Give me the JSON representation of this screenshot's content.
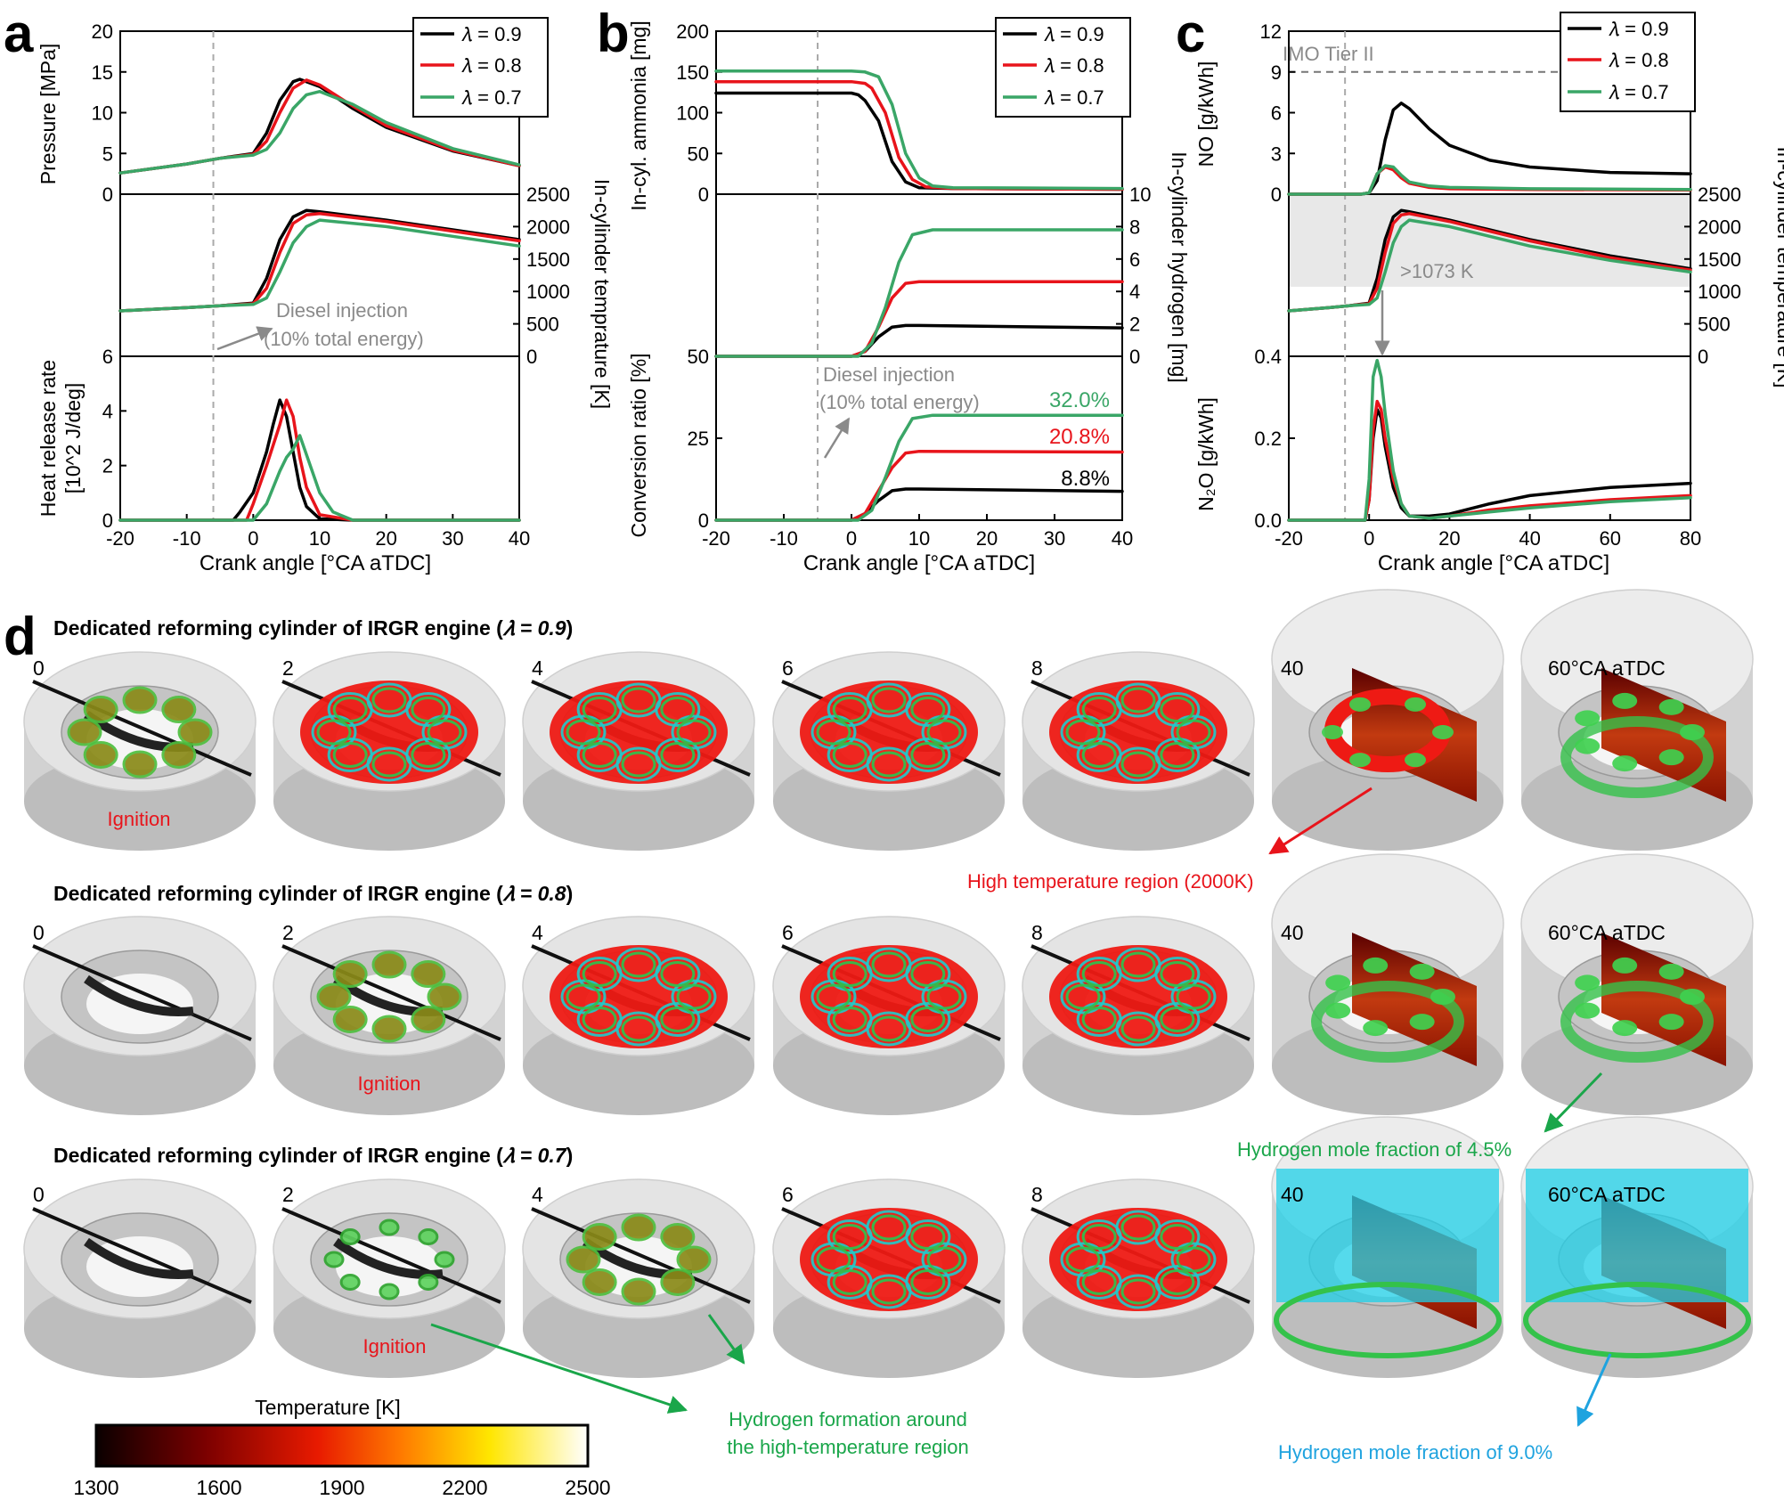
{
  "legend": {
    "entries": [
      "𝜆 = 0.9",
      "𝜆 = 0.8",
      "𝜆 = 0.7"
    ]
  },
  "colors": {
    "l09": "#000000",
    "l08": "#e8141b",
    "l07": "#3aa667",
    "vline": "#aaaaaa",
    "gray_text": "#8a8a8a",
    "cyan": "#1fa3df",
    "green_text": "#1aa64a",
    "red_text": "#e8141b"
  },
  "panel_a": {
    "letter": "a",
    "xlabel": "Crank angle [°CA aTDC]",
    "xticks": [
      "-20",
      "-10",
      "0",
      "10",
      "20",
      "30",
      "40"
    ],
    "top": {
      "ylabel": "Pressure [MPa]",
      "yticks": [
        "0",
        "5",
        "10",
        "15",
        "20"
      ]
    },
    "mid": {
      "ylabel_right": "In-cylinder temprature [K]",
      "yticks_right": [
        "0",
        "500",
        "1000",
        "1500",
        "2000",
        "2500"
      ]
    },
    "bot": {
      "ylabel_lines": [
        "Heat release rate",
        "[10^2 J/deg]"
      ],
      "yticks": [
        "0",
        "2",
        "4",
        "6"
      ]
    },
    "annotation": [
      "Diesel injection",
      "(10% total energy)"
    ]
  },
  "panel_b": {
    "letter": "b",
    "xlabel": "Crank angle [°CA aTDC]",
    "xticks": [
      "-20",
      "-10",
      "0",
      "10",
      "20",
      "30",
      "40"
    ],
    "top": {
      "ylabel": "In-cyl. ammonia [mg]",
      "yticks": [
        "0",
        "50",
        "100",
        "150",
        "200"
      ]
    },
    "mid": {
      "ylabel_right": "In-cylinder hydrogen [mg]",
      "yticks_right": [
        "0",
        "2",
        "4",
        "6",
        "8",
        "10"
      ]
    },
    "bot": {
      "ylabel": "Conversion ratio [%]",
      "yticks": [
        "0",
        "25",
        "50"
      ]
    },
    "annotation": [
      "Diesel injection",
      "(10% total energy)"
    ],
    "conversion_labels": [
      "32.0%",
      "20.8%",
      "8.8%"
    ]
  },
  "panel_c": {
    "letter": "c",
    "xlabel": "Crank angle [°CA aTDC]",
    "xticks": [
      "-20",
      "0",
      "20",
      "40",
      "60",
      "80"
    ],
    "top": {
      "ylabel": "NO [g/kWh]",
      "yticks": [
        "0",
        "3",
        "6",
        "9",
        "12"
      ],
      "imo_label": "IMO Tier II"
    },
    "mid": {
      "ylabel_right": "In-cylinder temperature [K]",
      "yticks_right": [
        "0",
        "500",
        "1000",
        "1500",
        "2000",
        "2500"
      ],
      "band_label": ">1073 K"
    },
    "bot": {
      "ylabel": "N₂O [g/kWh]",
      "yticks": [
        "0.0",
        "0.2",
        "0.4"
      ]
    }
  },
  "chart_data": [
    {
      "type": "line",
      "panel": "a-top",
      "ylabel": "Pressure [MPa]",
      "xlim": [
        -20,
        40
      ],
      "ylim": [
        0,
        20
      ],
      "series": [
        {
          "name": "𝜆 = 0.9",
          "x": [
            -20,
            -10,
            -5,
            0,
            2,
            4,
            6,
            7,
            10,
            15,
            20,
            30,
            40
          ],
          "y": [
            2.6,
            3.7,
            4.4,
            5.0,
            7.5,
            11.5,
            13.8,
            14.1,
            13.2,
            10.5,
            8.2,
            5.3,
            3.5
          ]
        },
        {
          "name": "𝜆 = 0.8",
          "x": [
            -20,
            -10,
            -5,
            0,
            2,
            4,
            6,
            8,
            10,
            15,
            20,
            30,
            40
          ],
          "y": [
            2.6,
            3.7,
            4.4,
            4.9,
            6.5,
            10.0,
            13.0,
            14.0,
            13.4,
            10.8,
            8.4,
            5.4,
            3.5
          ]
        },
        {
          "name": "𝜆 = 0.7",
          "x": [
            -20,
            -10,
            -5,
            0,
            2,
            4,
            6,
            8,
            10,
            15,
            20,
            30,
            40
          ],
          "y": [
            2.6,
            3.7,
            4.4,
            4.8,
            5.5,
            7.5,
            10.5,
            12.2,
            12.6,
            11.0,
            8.8,
            5.6,
            3.6
          ]
        }
      ]
    },
    {
      "type": "line",
      "panel": "a-mid",
      "ylabel": "In-cylinder temprature [K]",
      "xlim": [
        -20,
        40
      ],
      "ylim": [
        0,
        2500
      ],
      "series": [
        {
          "name": "𝜆 = 0.9",
          "x": [
            -20,
            -10,
            -5,
            0,
            2,
            4,
            6,
            8,
            10,
            20,
            30,
            40
          ],
          "y": [
            700,
            750,
            780,
            820,
            1200,
            1800,
            2150,
            2250,
            2230,
            2100,
            1950,
            1800
          ]
        },
        {
          "name": "𝜆 = 0.8",
          "x": [
            -20,
            -10,
            -5,
            0,
            2,
            4,
            6,
            8,
            10,
            20,
            30,
            40
          ],
          "y": [
            700,
            750,
            780,
            810,
            1050,
            1600,
            2050,
            2180,
            2200,
            2080,
            1930,
            1780
          ]
        },
        {
          "name": "𝜆 = 0.7",
          "x": [
            -20,
            -10,
            -5,
            0,
            2,
            4,
            6,
            8,
            10,
            20,
            30,
            40
          ],
          "y": [
            700,
            750,
            780,
            800,
            900,
            1300,
            1750,
            2000,
            2100,
            2000,
            1850,
            1700
          ]
        }
      ]
    },
    {
      "type": "line",
      "panel": "a-bot",
      "ylabel": "Heat release rate [10^2 J/deg]",
      "xlim": [
        -20,
        40
      ],
      "ylim": [
        0,
        6
      ],
      "series": [
        {
          "name": "𝜆 = 0.9",
          "x": [
            -20,
            -3,
            -2,
            0,
            2,
            3,
            4,
            5,
            6,
            7,
            8,
            10,
            15,
            40
          ],
          "y": [
            0,
            0,
            0.3,
            1.0,
            2.5,
            3.5,
            4.4,
            3.8,
            2.5,
            1.2,
            0.5,
            0.05,
            0,
            0
          ]
        },
        {
          "name": "𝜆 = 0.8",
          "x": [
            -20,
            -1,
            0,
            2,
            4,
            5,
            6,
            7,
            8,
            10,
            15,
            40
          ],
          "y": [
            0,
            0,
            0.6,
            2.0,
            3.5,
            4.4,
            3.8,
            2.3,
            1.2,
            0.2,
            0,
            0
          ]
        },
        {
          "name": "𝜆 = 0.7",
          "x": [
            -20,
            0,
            2,
            4,
            5,
            6,
            7,
            8,
            10,
            12,
            15,
            40
          ],
          "y": [
            0,
            0,
            0.6,
            1.8,
            2.3,
            2.6,
            3.1,
            2.4,
            1.0,
            0.3,
            0,
            0
          ]
        }
      ]
    },
    {
      "type": "line",
      "panel": "b-top",
      "ylabel": "In-cyl. ammonia [mg]",
      "xlim": [
        -20,
        40
      ],
      "ylim": [
        0,
        200
      ],
      "series": [
        {
          "name": "𝜆 = 0.9",
          "x": [
            -20,
            0,
            1,
            2,
            4,
            6,
            8,
            10,
            15,
            40
          ],
          "y": [
            124,
            124,
            122,
            115,
            90,
            40,
            15,
            8,
            7,
            6
          ]
        },
        {
          "name": "𝜆 = 0.8",
          "x": [
            -20,
            0,
            2,
            3,
            5,
            7,
            9,
            11,
            15,
            40
          ],
          "y": [
            138,
            138,
            136,
            130,
            100,
            45,
            18,
            9,
            7,
            6
          ]
        },
        {
          "name": "𝜆 = 0.7",
          "x": [
            -20,
            0,
            2,
            4,
            6,
            8,
            10,
            12,
            15,
            40
          ],
          "y": [
            151,
            151,
            150,
            144,
            110,
            50,
            20,
            10,
            8,
            7
          ]
        }
      ]
    },
    {
      "type": "line",
      "panel": "b-mid",
      "ylabel": "In-cylinder hydrogen [mg]",
      "xlim": [
        -20,
        40
      ],
      "ylim": [
        0,
        10
      ],
      "series": [
        {
          "name": "𝜆 = 0.9",
          "x": [
            -20,
            0,
            2,
            4,
            6,
            8,
            10,
            40
          ],
          "y": [
            0,
            0,
            0.3,
            1.2,
            1.8,
            1.9,
            1.9,
            1.75
          ]
        },
        {
          "name": "𝜆 = 0.8",
          "x": [
            -20,
            0,
            2,
            4,
            6,
            8,
            10,
            40
          ],
          "y": [
            0,
            0,
            0.3,
            1.8,
            3.6,
            4.5,
            4.6,
            4.6
          ]
        },
        {
          "name": "𝜆 = 0.7",
          "x": [
            -20,
            1,
            3,
            5,
            7,
            9,
            12,
            40
          ],
          "y": [
            0,
            0,
            0.8,
            3.0,
            5.8,
            7.5,
            7.8,
            7.8
          ]
        }
      ]
    },
    {
      "type": "line",
      "panel": "b-bot",
      "ylabel": "Conversion ratio [%]",
      "xlim": [
        -20,
        40
      ],
      "ylim": [
        0,
        50
      ],
      "series": [
        {
          "name": "𝜆 = 0.9",
          "x": [
            -20,
            0,
            2,
            4,
            6,
            8,
            10,
            40
          ],
          "y": [
            0,
            0,
            2,
            6,
            9,
            9.5,
            9.5,
            8.8
          ]
        },
        {
          "name": "𝜆 = 0.8",
          "x": [
            -20,
            0,
            2,
            4,
            6,
            8,
            10,
            40
          ],
          "y": [
            0,
            0,
            2,
            9,
            16,
            20.5,
            21,
            20.8
          ]
        },
        {
          "name": "𝜆 = 0.7",
          "x": [
            -20,
            1,
            3,
            5,
            7,
            9,
            12,
            40
          ],
          "y": [
            0,
            0,
            3,
            13,
            24,
            31,
            32,
            32
          ]
        }
      ]
    },
    {
      "type": "line",
      "panel": "c-top",
      "ylabel": "NO [g/kWh]",
      "xlim": [
        -20,
        80
      ],
      "ylim": [
        0,
        12
      ],
      "series": [
        {
          "name": "𝜆 = 0.9",
          "x": [
            -20,
            -2,
            0,
            2,
            4,
            6,
            8,
            10,
            15,
            20,
            30,
            40,
            60,
            80
          ],
          "y": [
            0,
            0,
            0.1,
            1.0,
            4.0,
            6.2,
            6.7,
            6.3,
            4.8,
            3.6,
            2.5,
            2.0,
            1.6,
            1.5
          ]
        },
        {
          "name": "𝜆 = 0.8",
          "x": [
            -20,
            -2,
            0,
            2,
            4,
            6,
            8,
            10,
            15,
            20,
            40,
            80
          ],
          "y": [
            0,
            0,
            0.1,
            1.5,
            2.0,
            1.8,
            1.2,
            0.8,
            0.5,
            0.4,
            0.35,
            0.3
          ]
        },
        {
          "name": "𝜆 = 0.7",
          "x": [
            -20,
            -2,
            0,
            2,
            4,
            6,
            8,
            10,
            15,
            20,
            40,
            80
          ],
          "y": [
            0,
            0,
            0.1,
            1.5,
            2.1,
            2.0,
            1.4,
            0.9,
            0.6,
            0.5,
            0.4,
            0.35
          ]
        }
      ]
    },
    {
      "type": "line",
      "panel": "c-mid",
      "ylabel": "In-cylinder temperature [K]",
      "xlim": [
        -20,
        80
      ],
      "ylim": [
        0,
        2500
      ],
      "series": [
        {
          "name": "𝜆 = 0.9",
          "x": [
            -20,
            -10,
            -5,
            0,
            2,
            4,
            6,
            8,
            10,
            20,
            30,
            40,
            60,
            80
          ],
          "y": [
            700,
            750,
            780,
            820,
            1200,
            1800,
            2150,
            2250,
            2230,
            2100,
            1950,
            1800,
            1550,
            1350
          ]
        },
        {
          "name": "𝜆 = 0.8",
          "x": [
            -20,
            -10,
            -5,
            0,
            2,
            4,
            6,
            8,
            10,
            20,
            30,
            40,
            60,
            80
          ],
          "y": [
            700,
            750,
            780,
            810,
            1050,
            1600,
            2050,
            2180,
            2200,
            2080,
            1930,
            1780,
            1520,
            1330
          ]
        },
        {
          "name": "𝜆 = 0.7",
          "x": [
            -20,
            -10,
            -5,
            0,
            2,
            4,
            6,
            8,
            10,
            20,
            30,
            40,
            60,
            80
          ],
          "y": [
            700,
            750,
            780,
            800,
            900,
            1300,
            1750,
            2000,
            2100,
            2000,
            1850,
            1700,
            1480,
            1300
          ]
        }
      ]
    },
    {
      "type": "line",
      "panel": "c-bot",
      "ylabel": "N₂O [g/kWh]",
      "xlim": [
        -20,
        80
      ],
      "ylim": [
        0,
        0.4
      ],
      "series": [
        {
          "name": "𝜆 = 0.9",
          "x": [
            -20,
            -1,
            0,
            1,
            2,
            3,
            4,
            6,
            8,
            10,
            15,
            20,
            30,
            40,
            60,
            80
          ],
          "y": [
            0,
            0,
            0.05,
            0.2,
            0.27,
            0.25,
            0.18,
            0.08,
            0.03,
            0.01,
            0.01,
            0.015,
            0.04,
            0.06,
            0.08,
            0.09
          ]
        },
        {
          "name": "𝜆 = 0.8",
          "x": [
            -20,
            -1,
            0,
            1,
            2,
            3,
            4,
            6,
            8,
            10,
            15,
            20,
            30,
            40,
            60,
            80
          ],
          "y": [
            0,
            0,
            0.05,
            0.22,
            0.29,
            0.27,
            0.2,
            0.1,
            0.04,
            0.01,
            0.005,
            0.01,
            0.025,
            0.035,
            0.05,
            0.06
          ]
        },
        {
          "name": "𝜆 = 0.7",
          "x": [
            -20,
            -1,
            0,
            1,
            2,
            3,
            4,
            6,
            8,
            10,
            15,
            20,
            30,
            40,
            60,
            80
          ],
          "y": [
            0,
            0,
            0.1,
            0.35,
            0.39,
            0.35,
            0.26,
            0.12,
            0.04,
            0.01,
            0.005,
            0.01,
            0.02,
            0.03,
            0.045,
            0.055
          ]
        }
      ]
    }
  ],
  "panel_d": {
    "letter": "d",
    "rows": [
      {
        "title_prefix": "Dedicated reforming cylinder of IRGR engine (",
        "title_lambda": "𝜆 = 0.9",
        "title_suffix": ")"
      },
      {
        "title_prefix": "Dedicated reforming cylinder of IRGR engine (",
        "title_lambda": "𝜆 = 0.8",
        "title_suffix": ")"
      },
      {
        "title_prefix": "Dedicated reforming cylinder of IRGR engine (",
        "title_lambda": "𝜆 = 0.7",
        "title_suffix": ")"
      }
    ],
    "frame_labels": [
      "0",
      "2",
      "4",
      "6",
      "8",
      "40",
      "60°CA aTDC"
    ],
    "ignition_label": "Ignition",
    "annotations": {
      "high_temp": "High temperature region (2000K)",
      "h2_45": "Hydrogen mole fraction of 4.5%",
      "h2_formation_1": "Hydrogen formation around",
      "h2_formation_2": "the high-temperature region",
      "h2_90": "Hydrogen mole fraction of 9.0%"
    },
    "colorbar": {
      "title": "Temperature [K]",
      "ticks": [
        "1300",
        "1600",
        "1900",
        "2200",
        "2500"
      ],
      "range": [
        1300,
        2500
      ]
    }
  }
}
